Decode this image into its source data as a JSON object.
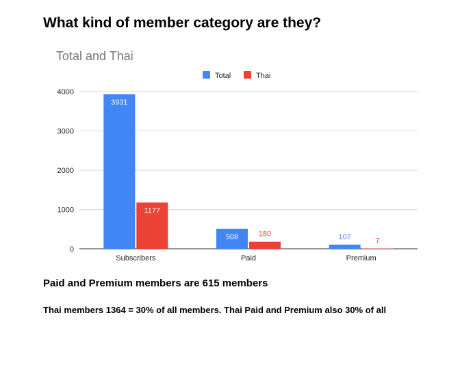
{
  "heading": "What kind of member category are they?",
  "note1": "Paid and Premium members are 615 members",
  "note2": "Thai members 1364 = 30% of all members. Thai Paid and Premium also 30% of all",
  "colors": {
    "total": "#4285f4",
    "thai": "#ea4335",
    "grid": "#d9d9d9",
    "axis": "#333333",
    "title": "#757575"
  },
  "chart_data": {
    "type": "bar",
    "title": "Total and Thai",
    "categories": [
      "Subscribers",
      "Paid",
      "Premium"
    ],
    "series": [
      {
        "name": "Total",
        "values": [
          3931,
          508,
          107
        ]
      },
      {
        "name": "Thai",
        "values": [
          1177,
          180,
          7
        ]
      }
    ],
    "ylim": [
      0,
      4000
    ],
    "yticks": [
      0,
      1000,
      2000,
      3000,
      4000
    ],
    "grid": true,
    "legend": "top-center"
  }
}
